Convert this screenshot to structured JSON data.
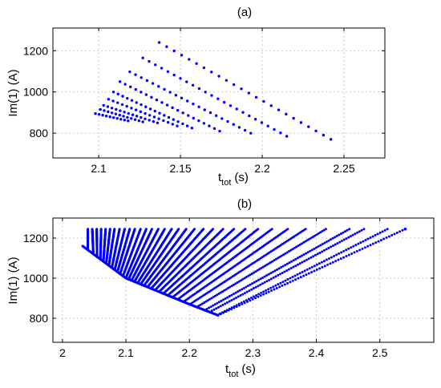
{
  "chart_data": [
    {
      "panel": "(a)",
      "type": "scatter",
      "title": "(a)",
      "xlabel_main": "t",
      "xlabel_sub": "tot",
      "xlabel_unit": "(s)",
      "ylabel": "Im(1) (A)",
      "xlim": [
        2.072,
        2.275
      ],
      "ylim": [
        680,
        1310
      ],
      "xticks": [
        2.1,
        2.15,
        2.2,
        2.25
      ],
      "yticks": [
        800,
        1000,
        1200
      ],
      "grid": true,
      "color": "#0000ff",
      "series": [
        {
          "points_per_line": 24,
          "x": [
            2.137,
            2.242
          ],
          "y": [
            1240,
            770
          ]
        },
        {
          "points_per_line": 24,
          "x": [
            2.127,
            2.215
          ],
          "y": [
            1165,
            785
          ]
        },
        {
          "points_per_line": 22,
          "x": [
            2.119,
            2.193
          ],
          "y": [
            1098,
            800
          ]
        },
        {
          "points_per_line": 20,
          "x": [
            2.113,
            2.174
          ],
          "y": [
            1050,
            810
          ]
        },
        {
          "points_per_line": 18,
          "x": [
            2.109,
            2.157
          ],
          "y": [
            1000,
            825
          ]
        },
        {
          "points_per_line": 16,
          "x": [
            2.106,
            2.148
          ],
          "y": [
            965,
            835
          ]
        },
        {
          "points_per_line": 14,
          "x": [
            2.103,
            2.136
          ],
          "y": [
            935,
            850
          ]
        },
        {
          "points_per_line": 12,
          "x": [
            2.101,
            2.127
          ],
          "y": [
            915,
            855
          ]
        },
        {
          "points_per_line": 10,
          "x": [
            2.098,
            2.118
          ],
          "y": [
            895,
            860
          ]
        }
      ]
    },
    {
      "panel": "(b)",
      "type": "scatter",
      "title": "(b)",
      "xlabel_main": "t",
      "xlabel_sub": "tot",
      "xlabel_unit": "(s)",
      "ylabel": "Im(1) (A)",
      "xlim": [
        1.985,
        2.585
      ],
      "ylim": [
        680,
        1300
      ],
      "xticks": [
        2,
        2.1,
        2.2,
        2.3,
        2.4,
        2.5
      ],
      "yticks": [
        800,
        1000,
        1200
      ],
      "grid": true,
      "color": "#0000ff",
      "lower_envelope": {
        "x": [
          2.032,
          2.1,
          2.2,
          2.245
        ],
        "y": [
          1160,
          1000,
          870,
          815
        ]
      },
      "line_top_y": 1245,
      "line_tops_x": [
        2.04,
        2.047,
        2.054,
        2.061,
        2.068,
        2.075,
        2.082,
        2.09,
        2.098,
        2.106,
        2.114,
        2.123,
        2.132,
        2.141,
        2.151,
        2.161,
        2.172,
        2.183,
        2.195,
        2.208,
        2.222,
        2.237,
        2.253,
        2.27,
        2.288,
        2.308,
        2.33,
        2.355,
        2.383,
        2.415,
        2.452,
        2.475,
        2.512,
        2.54
      ],
      "isolated_points": [
        {
          "x": 2.54,
          "y": 1245
        }
      ]
    }
  ]
}
